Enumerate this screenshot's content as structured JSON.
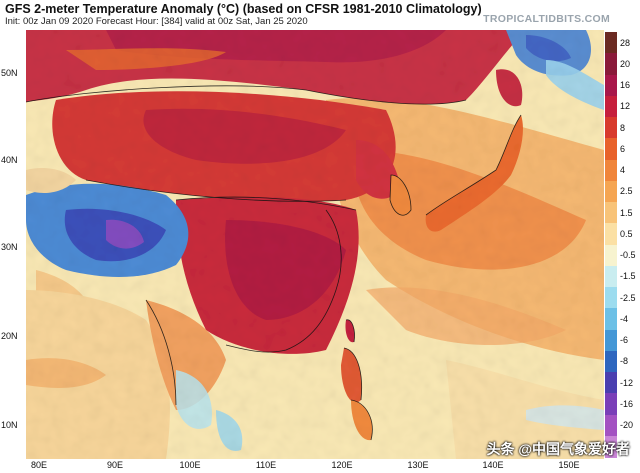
{
  "header": {
    "title": "GFS 2-meter Temperature Anomaly (°C) (based on CFSR 1981-2010 Climatology)",
    "subtitle": "Init: 00z Jan 09 2020   Forecast Hour: [384]   valid at 00z Sat, Jan 25 2020",
    "brand": "TROPICALTIDBITS.COM"
  },
  "axes": {
    "lat_labels": [
      "50N",
      "40N",
      "30N",
      "20N",
      "10N"
    ],
    "lon_labels": [
      "80E",
      "90E",
      "100E",
      "110E",
      "120E",
      "130E",
      "140E",
      "150E"
    ]
  },
  "colorbar": {
    "labels": [
      "28",
      "20",
      "16",
      "12",
      "8",
      "6",
      "4",
      "2.5",
      "1.5",
      "0.5",
      "-0.5",
      "-1.5",
      "-2.5",
      "-4",
      "-6",
      "-8",
      "-12",
      "-16",
      "-20"
    ],
    "colors": [
      "#6b2a22",
      "#8a1a3a",
      "#a8174a",
      "#c61f3c",
      "#d83a2c",
      "#e8612a",
      "#f0853a",
      "#f5a552",
      "#f8c378",
      "#fbe0a4",
      "#f7f3cf",
      "#c9edf0",
      "#9cdcef",
      "#6cc0e6",
      "#4497d6",
      "#2e66bf",
      "#4a3fb0",
      "#7a3fb8",
      "#a352c2",
      "#c985d6"
    ]
  },
  "watermark": "头条 @中国气象爱好者"
}
